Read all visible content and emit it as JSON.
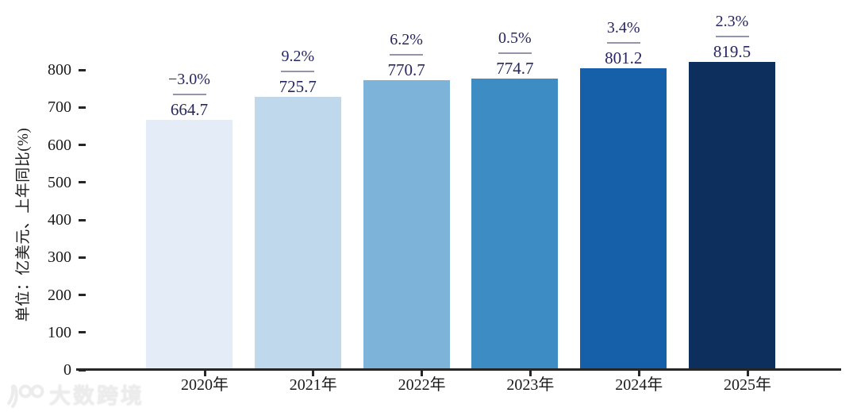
{
  "chart_data": {
    "type": "bar",
    "title": "",
    "categories": [
      "2020年",
      "2021年",
      "2022年",
      "2023年",
      "2024年",
      "2025年"
    ],
    "values": [
      664.7,
      725.7,
      770.7,
      774.7,
      801.2,
      819.5
    ],
    "pct_labels": [
      "−3.0%",
      "9.2%",
      "6.2%",
      "0.5%",
      "3.4%",
      "2.3%"
    ],
    "bar_colors": [
      "#e3ecf7",
      "#bfd8eb",
      "#7db3d8",
      "#3d8cc3",
      "#1560a8",
      "#0d2f5e"
    ],
    "ylabel": "单位：亿美元、上年同比(%)",
    "xlabel": "",
    "yticks": [
      0,
      100,
      200,
      300,
      400,
      500,
      600,
      700,
      800
    ],
    "ylim": [
      0,
      800
    ],
    "grid": false,
    "legend_position": "none",
    "colors": {
      "annotation_text": "#262663",
      "fraction_line": "#9494ac",
      "axis": "#262626",
      "tick_text": "#1a1a1a",
      "background": "#ffffff"
    }
  },
  "watermark": {
    "logo": "100",
    "text": "大数跨境",
    "color": "#ececec"
  }
}
